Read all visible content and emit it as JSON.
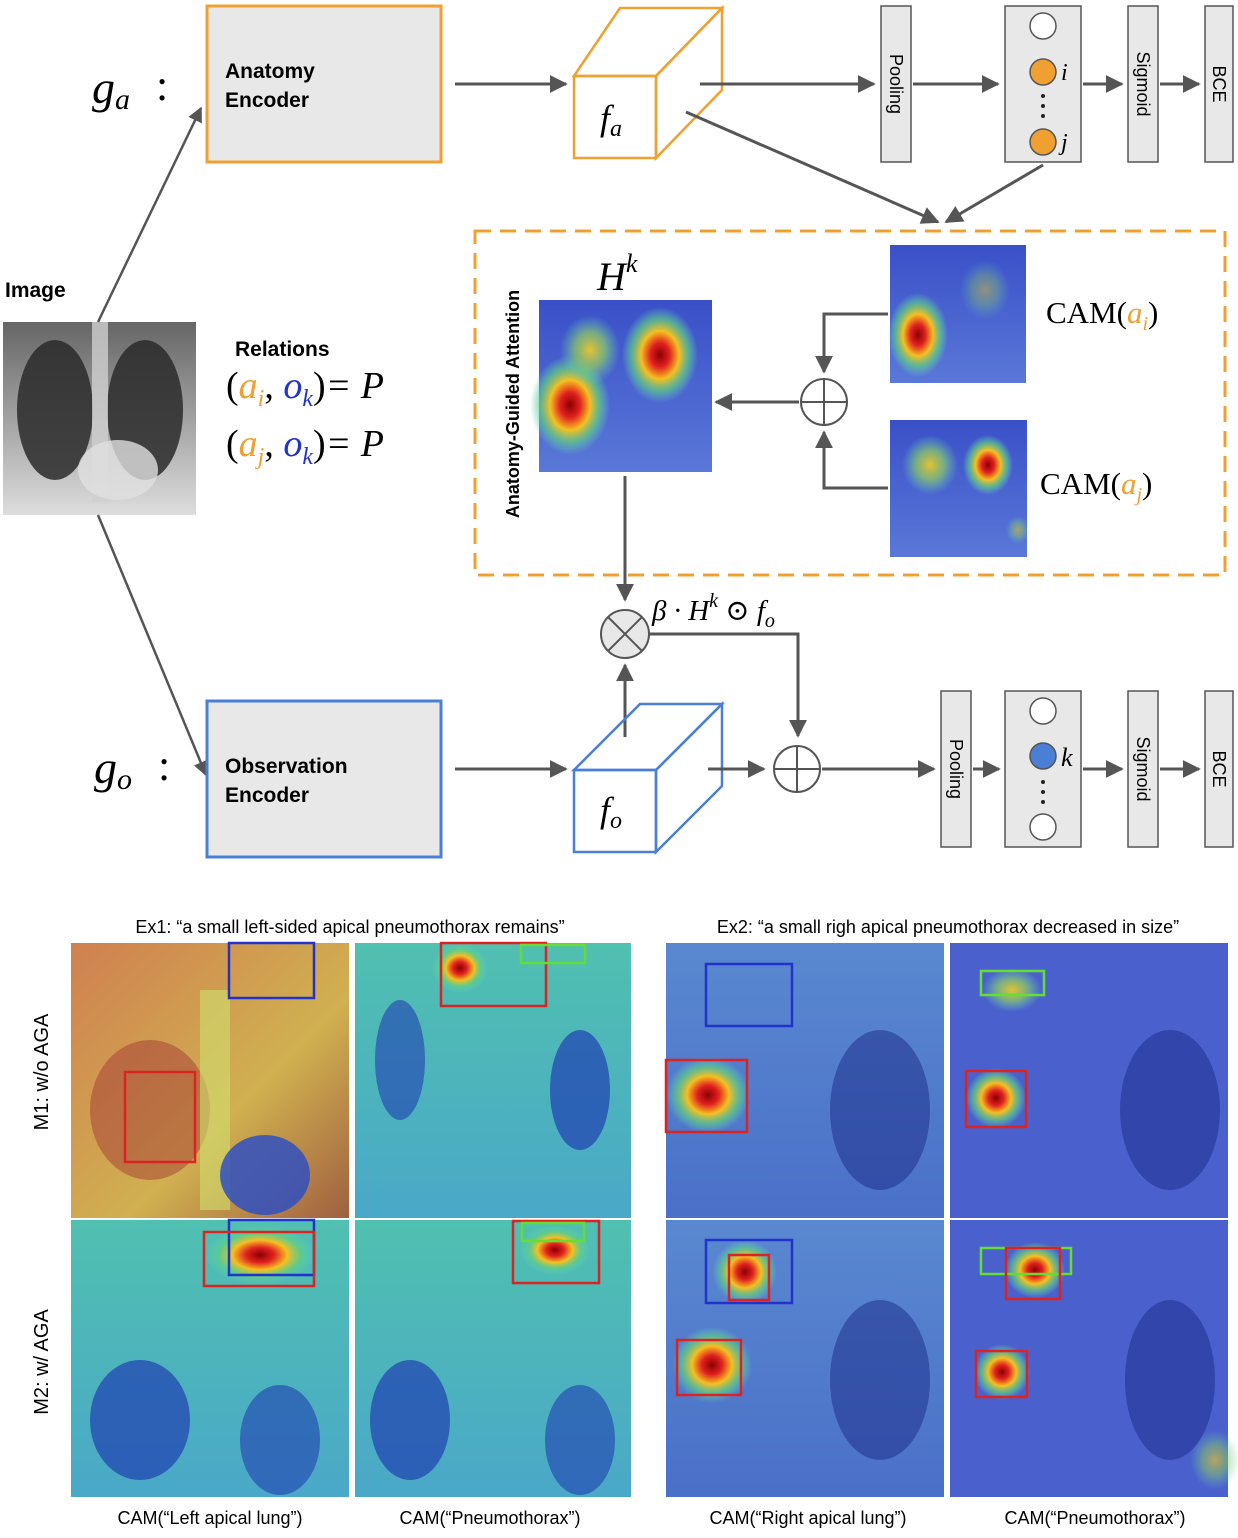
{
  "top": {
    "ga_label": "g",
    "ga_sub": "a",
    "go_label": "g",
    "go_sub": "o",
    "colon": ":",
    "anatomy_encoder": [
      "Anatomy",
      "Encoder"
    ],
    "observation_encoder": [
      "Observation",
      "Encoder"
    ],
    "fa_label": "f",
    "fa_sub": "a",
    "fo_label": "f",
    "fo_sub": "o",
    "pooling": "Pooling",
    "sigmoid": "Sigmoid",
    "bce": "BCE",
    "node_i": "i",
    "node_j": "j",
    "node_k": "k",
    "image_label": "Image",
    "relations_title": "Relations",
    "relation1": {
      "a": "a",
      "a_sub": "i",
      "o": "o",
      "o_sub": "k",
      "rhs": "= P"
    },
    "relation2": {
      "a": "a",
      "a_sub": "j",
      "o": "o",
      "o_sub": "k",
      "rhs": "= P"
    },
    "attention_label": "Anatomy-Guided Attention",
    "hk_label": "H",
    "hk_sup": "k",
    "cam_i": {
      "prefix": "CAM(",
      "var": "a",
      "sub": "i",
      "suffix": ")"
    },
    "cam_j": {
      "prefix": "CAM(",
      "var": "a",
      "sub": "j",
      "suffix": ")"
    },
    "formula": {
      "beta": "β · H",
      "sup": "k",
      "odot": " ⊙ f",
      "sub": "o"
    }
  },
  "bottom": {
    "ex1_title": "Ex1: “a small left-sided apical pneumothorax remains”",
    "ex2_title": "Ex2: “a small righ apical pneumothorax decreased in size”",
    "row1_label": "M1: w/o AGA",
    "row2_label": "M2: w/ AGA",
    "captions": [
      "CAM(“Left apical lung”)",
      "CAM(“Pneumothorax”)",
      "CAM(“Right apical lung”)",
      "CAM(“Pneumothorax”)"
    ]
  },
  "colors": {
    "anatomy": "#f0a030",
    "observation": "#4a7fd6",
    "gray_box": "#e8e8e8",
    "arrow": "#555555",
    "blue_var": "#2233cc"
  }
}
